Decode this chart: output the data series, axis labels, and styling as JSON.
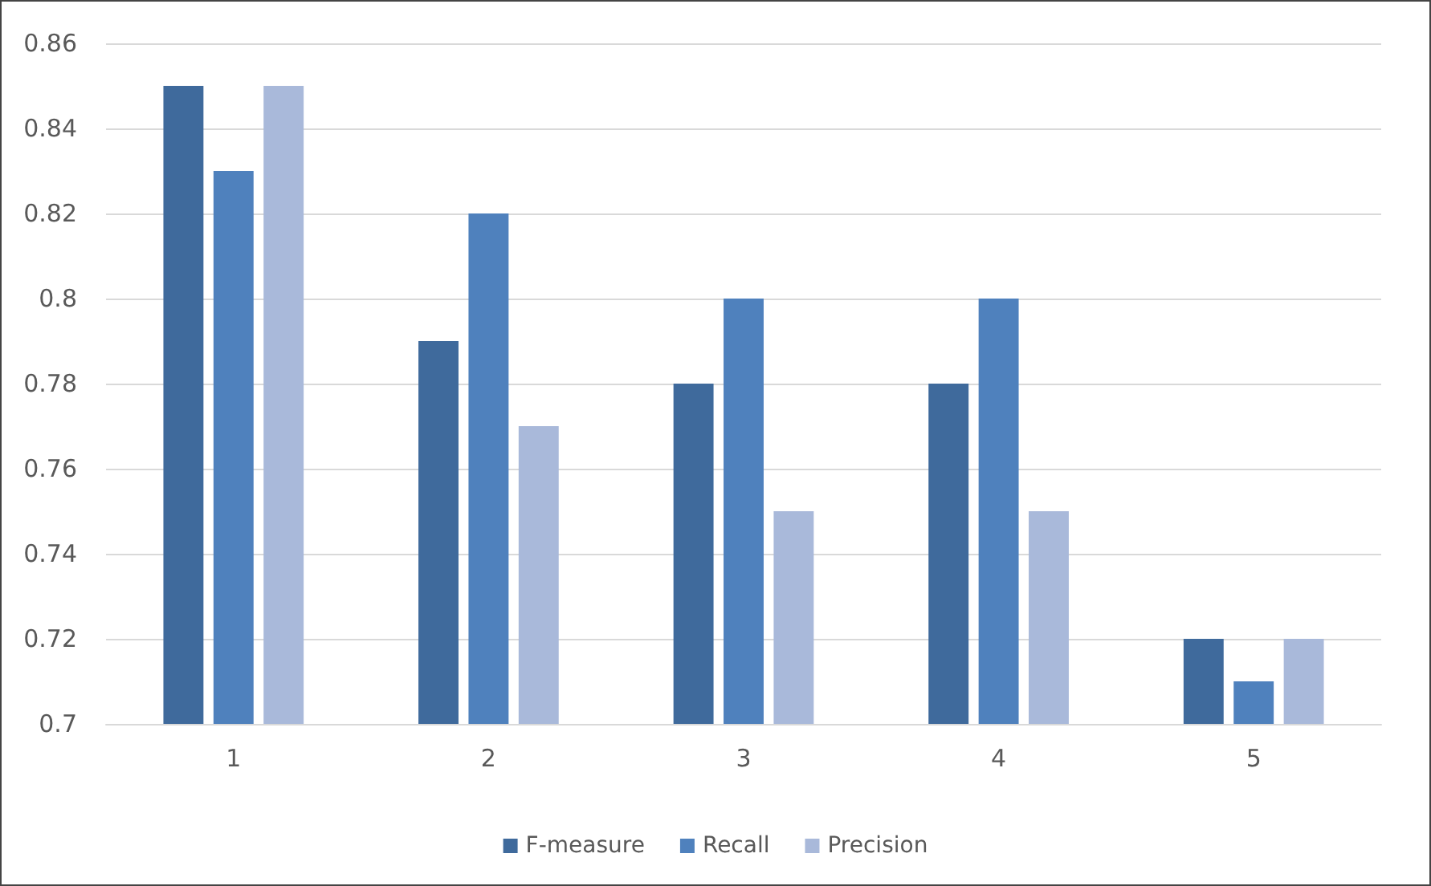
{
  "chart_data": {
    "type": "bar",
    "categories": [
      "1",
      "2",
      "3",
      "4",
      "5"
    ],
    "series": [
      {
        "name": "F-measure",
        "color": "#3f6a9c",
        "values": [
          0.85,
          0.79,
          0.78,
          0.78,
          0.72
        ]
      },
      {
        "name": "Recall",
        "color": "#4f81bd",
        "values": [
          0.83,
          0.82,
          0.8,
          0.8,
          0.71
        ]
      },
      {
        "name": "Precision",
        "color": "#a9b9da",
        "values": [
          0.85,
          0.77,
          0.75,
          0.75,
          0.72
        ]
      }
    ],
    "ylim": [
      0.7,
      0.86
    ],
    "yticks": [
      0.7,
      0.72,
      0.74,
      0.76,
      0.78,
      0.8,
      0.82,
      0.84,
      0.86
    ],
    "grid": "y",
    "legend": "bottom"
  }
}
